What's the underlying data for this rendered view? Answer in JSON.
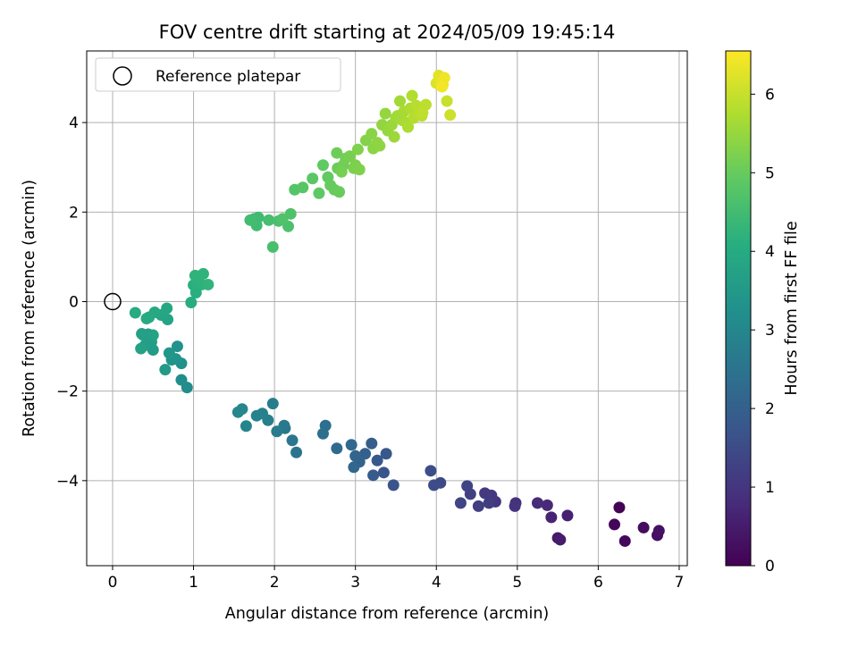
{
  "chart_data": {
    "type": "scatter",
    "title": "FOV centre drift starting at 2024/05/09 19:45:14",
    "xlabel": "Angular distance from reference (arcmin)",
    "ylabel": "Rotation from reference (arcmin)",
    "xlim": [
      -0.32,
      7.1
    ],
    "ylim": [
      -5.9,
      5.6
    ],
    "xticks": [
      0,
      1,
      2,
      3,
      4,
      5,
      6,
      7
    ],
    "yticks": [
      -4,
      -2,
      0,
      2,
      4
    ],
    "xtick_labels": [
      "0",
      "1",
      "2",
      "3",
      "4",
      "5",
      "6",
      "7"
    ],
    "ytick_labels": [
      "−4",
      "−2",
      "0",
      "2",
      "4"
    ],
    "grid": true,
    "colormap": "viridis",
    "colorbar": {
      "label": "Hours from first FF file",
      "range": [
        0,
        6.55
      ],
      "ticks": [
        0,
        1,
        2,
        3,
        4,
        5,
        6
      ],
      "tick_labels": [
        "0",
        "1",
        "2",
        "3",
        "4",
        "5",
        "6"
      ]
    },
    "legend": {
      "position": "top-left",
      "entries": [
        "Reference platepar"
      ]
    },
    "reference_point": {
      "x": 0,
      "y": 0
    },
    "columns": [
      "x",
      "y",
      "hours"
    ],
    "points": [
      [
        6.26,
        -4.6,
        0.05
      ],
      [
        6.2,
        -4.98,
        0.1
      ],
      [
        6.33,
        -5.35,
        0.15
      ],
      [
        6.56,
        -5.05,
        0.2
      ],
      [
        6.73,
        -5.22,
        0.25
      ],
      [
        6.75,
        -5.12,
        0.3
      ],
      [
        5.5,
        -5.28,
        0.45
      ],
      [
        5.53,
        -5.32,
        0.5
      ],
      [
        5.62,
        -4.78,
        0.6
      ],
      [
        5.42,
        -4.82,
        0.65
      ],
      [
        5.37,
        -4.55,
        0.75
      ],
      [
        5.25,
        -4.5,
        0.8
      ],
      [
        4.98,
        -4.5,
        0.9
      ],
      [
        4.97,
        -4.57,
        0.95
      ],
      [
        4.73,
        -4.47,
        1.0
      ],
      [
        4.68,
        -4.33,
        1.05
      ],
      [
        4.6,
        -4.28,
        1.1
      ],
      [
        4.65,
        -4.5,
        1.15
      ],
      [
        4.52,
        -4.57,
        1.2
      ],
      [
        4.42,
        -4.3,
        1.25
      ],
      [
        4.38,
        -4.12,
        1.3
      ],
      [
        4.3,
        -4.5,
        1.35
      ],
      [
        4.05,
        -4.05,
        1.45
      ],
      [
        3.97,
        -4.1,
        1.5
      ],
      [
        3.93,
        -3.78,
        1.55
      ],
      [
        3.47,
        -4.1,
        1.7
      ],
      [
        3.35,
        -3.82,
        1.75
      ],
      [
        3.38,
        -3.4,
        1.8
      ],
      [
        3.27,
        -3.55,
        1.85
      ],
      [
        3.22,
        -3.88,
        1.9
      ],
      [
        3.2,
        -3.17,
        1.95
      ],
      [
        3.12,
        -3.4,
        2.0
      ],
      [
        3.05,
        -3.58,
        2.05
      ],
      [
        3.0,
        -3.45,
        2.1
      ],
      [
        2.98,
        -3.7,
        2.15
      ],
      [
        2.95,
        -3.2,
        2.2
      ],
      [
        2.77,
        -3.28,
        2.25
      ],
      [
        2.63,
        -2.77,
        2.35
      ],
      [
        2.6,
        -2.95,
        2.4
      ],
      [
        2.27,
        -3.37,
        2.5
      ],
      [
        2.22,
        -3.1,
        2.55
      ],
      [
        2.13,
        -2.83,
        2.6
      ],
      [
        2.12,
        -2.77,
        2.65
      ],
      [
        2.03,
        -2.9,
        2.7
      ],
      [
        1.98,
        -2.28,
        2.75
      ],
      [
        1.92,
        -2.65,
        2.8
      ],
      [
        1.85,
        -2.5,
        2.85
      ],
      [
        1.78,
        -2.55,
        2.9
      ],
      [
        1.65,
        -2.78,
        2.95
      ],
      [
        1.6,
        -2.4,
        3.0
      ],
      [
        1.55,
        -2.47,
        3.05
      ],
      [
        0.92,
        -1.92,
        3.15
      ],
      [
        0.85,
        -1.75,
        3.2
      ],
      [
        0.85,
        -1.38,
        3.25
      ],
      [
        0.8,
        -1.0,
        3.3
      ],
      [
        0.78,
        -1.28,
        3.35
      ],
      [
        0.73,
        -1.3,
        3.4
      ],
      [
        0.7,
        -1.15,
        3.45
      ],
      [
        0.65,
        -1.52,
        3.5
      ],
      [
        0.5,
        -1.08,
        3.55
      ],
      [
        0.48,
        -0.9,
        3.6
      ],
      [
        0.44,
        -0.73,
        3.62
      ],
      [
        0.4,
        -0.98,
        3.65
      ],
      [
        0.38,
        -0.75,
        3.68
      ],
      [
        0.36,
        -0.72,
        3.7
      ],
      [
        0.35,
        -1.05,
        3.72
      ],
      [
        0.5,
        -0.75,
        3.75
      ],
      [
        0.68,
        -0.4,
        3.8
      ],
      [
        0.6,
        -0.3,
        3.85
      ],
      [
        0.67,
        -0.15,
        3.9
      ],
      [
        0.52,
        -0.24,
        3.92
      ],
      [
        0.45,
        -0.35,
        3.95
      ],
      [
        0.42,
        -0.38,
        3.98
      ],
      [
        0.28,
        -0.25,
        4.0
      ],
      [
        0.97,
        -0.02,
        4.05
      ],
      [
        1.03,
        0.2,
        4.1
      ],
      [
        1.0,
        0.37,
        4.12
      ],
      [
        1.05,
        0.43,
        4.15
      ],
      [
        1.1,
        0.38,
        4.18
      ],
      [
        1.02,
        0.58,
        4.2
      ],
      [
        1.12,
        0.62,
        4.22
      ],
      [
        1.18,
        0.38,
        4.25
      ],
      [
        1.75,
        1.85,
        4.4
      ],
      [
        1.8,
        1.88,
        4.45
      ],
      [
        1.78,
        1.7,
        4.48
      ],
      [
        1.7,
        1.82,
        4.5
      ],
      [
        1.93,
        1.82,
        4.55
      ],
      [
        1.98,
        1.22,
        4.6
      ],
      [
        2.05,
        1.8,
        4.62
      ],
      [
        2.17,
        1.68,
        4.65
      ],
      [
        2.2,
        1.96,
        4.68
      ],
      [
        2.1,
        1.85,
        4.7
      ],
      [
        2.25,
        2.5,
        4.75
      ],
      [
        2.35,
        2.55,
        4.8
      ],
      [
        2.47,
        2.75,
        4.85
      ],
      [
        2.55,
        2.42,
        4.9
      ],
      [
        2.6,
        3.05,
        4.92
      ],
      [
        2.66,
        2.78,
        4.95
      ],
      [
        2.69,
        2.6,
        4.98
      ],
      [
        2.74,
        2.5,
        5.0
      ],
      [
        2.8,
        2.45,
        5.02
      ],
      [
        2.78,
        2.98,
        5.05
      ],
      [
        2.77,
        3.32,
        5.08
      ],
      [
        2.85,
        3.05,
        5.1
      ],
      [
        2.88,
        3.2,
        5.12
      ],
      [
        2.83,
        2.9,
        5.15
      ],
      [
        2.93,
        3.25,
        5.17
      ],
      [
        2.98,
        2.98,
        5.2
      ],
      [
        3.0,
        3.05,
        5.22
      ],
      [
        3.05,
        2.95,
        5.25
      ],
      [
        3.03,
        3.4,
        5.27
      ],
      [
        3.13,
        3.6,
        5.3
      ],
      [
        3.2,
        3.75,
        5.35
      ],
      [
        3.22,
        3.42,
        5.38
      ],
      [
        3.27,
        3.55,
        5.4
      ],
      [
        3.3,
        3.48,
        5.42
      ],
      [
        3.33,
        3.95,
        5.45
      ],
      [
        3.37,
        4.2,
        5.48
      ],
      [
        3.4,
        3.82,
        5.5
      ],
      [
        3.45,
        3.95,
        5.52
      ],
      [
        3.48,
        3.68,
        5.55
      ],
      [
        3.5,
        4.1,
        5.57
      ],
      [
        3.52,
        4.15,
        5.6
      ],
      [
        3.55,
        4.48,
        5.62
      ],
      [
        3.58,
        4.05,
        5.65
      ],
      [
        3.6,
        4.25,
        5.67
      ],
      [
        3.63,
        4.0,
        5.7
      ],
      [
        3.65,
        3.9,
        5.72
      ],
      [
        3.68,
        4.32,
        5.75
      ],
      [
        3.7,
        4.6,
        5.77
      ],
      [
        3.72,
        4.1,
        5.8
      ],
      [
        3.75,
        4.38,
        5.82
      ],
      [
        3.78,
        4.2,
        5.85
      ],
      [
        3.82,
        4.15,
        5.88
      ],
      [
        3.87,
        4.4,
        5.9
      ],
      [
        3.83,
        4.22,
        5.92
      ],
      [
        4.13,
        4.48,
        6.0
      ],
      [
        4.17,
        4.17,
        6.05
      ],
      [
        4.0,
        4.88,
        6.2
      ],
      [
        4.03,
        5.05,
        6.25
      ],
      [
        4.05,
        4.92,
        6.3
      ],
      [
        4.08,
        4.85,
        6.35
      ],
      [
        4.1,
        5.0,
        6.4
      ],
      [
        4.07,
        4.8,
        6.45
      ]
    ]
  }
}
